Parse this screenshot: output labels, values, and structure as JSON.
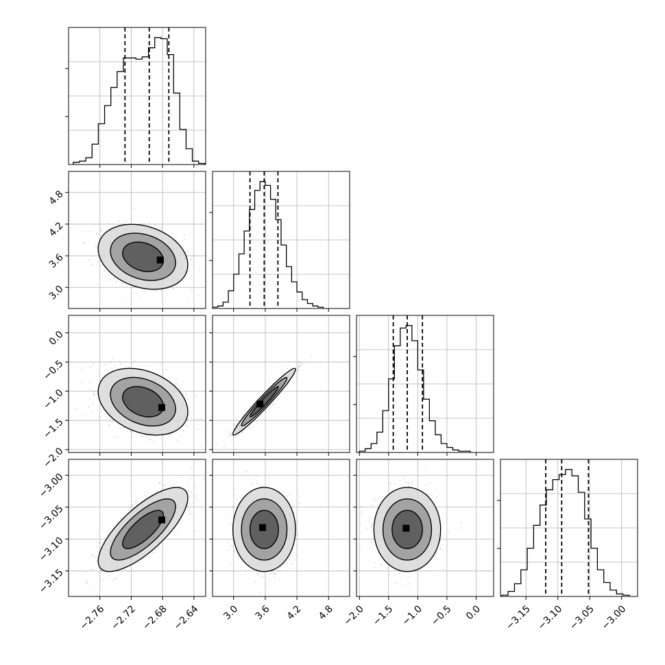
{
  "figure": {
    "grid": true
  },
  "chart_data": [
    {
      "type": "histogram",
      "panel": "1-1",
      "xlim": [
        -2.8,
        -2.625
      ],
      "bins": [
        {
          "x": -2.79,
          "count": 2
        },
        {
          "x": -2.782,
          "count": 3
        },
        {
          "x": -2.774,
          "count": 6
        },
        {
          "x": -2.766,
          "count": 18
        },
        {
          "x": -2.758,
          "count": 36
        },
        {
          "x": -2.75,
          "count": 52
        },
        {
          "x": -2.742,
          "count": 68
        },
        {
          "x": -2.734,
          "count": 82
        },
        {
          "x": -2.726,
          "count": 94
        },
        {
          "x": -2.718,
          "count": 94
        },
        {
          "x": -2.71,
          "count": 93
        },
        {
          "x": -2.702,
          "count": 95
        },
        {
          "x": -2.694,
          "count": 103
        },
        {
          "x": -2.686,
          "count": 112
        },
        {
          "x": -2.678,
          "count": 111
        },
        {
          "x": -2.67,
          "count": 97
        },
        {
          "x": -2.662,
          "count": 63
        },
        {
          "x": -2.654,
          "count": 31
        },
        {
          "x": -2.646,
          "count": 14
        },
        {
          "x": -2.638,
          "count": 3
        },
        {
          "x": -2.63,
          "count": 1
        }
      ],
      "quantiles": [
        -2.728,
        -2.697,
        -2.672
      ]
    },
    {
      "type": "histogram",
      "panel": "2-2",
      "xlim": [
        2.6,
        5.2
      ],
      "bins": [
        {
          "x": 2.65,
          "count": 1
        },
        {
          "x": 2.75,
          "count": 2
        },
        {
          "x": 2.85,
          "count": 5
        },
        {
          "x": 2.95,
          "count": 14
        },
        {
          "x": 3.05,
          "count": 27
        },
        {
          "x": 3.15,
          "count": 43
        },
        {
          "x": 3.25,
          "count": 61
        },
        {
          "x": 3.35,
          "count": 78
        },
        {
          "x": 3.45,
          "count": 93
        },
        {
          "x": 3.55,
          "count": 100
        },
        {
          "x": 3.65,
          "count": 97
        },
        {
          "x": 3.75,
          "count": 86
        },
        {
          "x": 3.85,
          "count": 70
        },
        {
          "x": 3.95,
          "count": 50
        },
        {
          "x": 4.05,
          "count": 33
        },
        {
          "x": 4.15,
          "count": 21
        },
        {
          "x": 4.25,
          "count": 13
        },
        {
          "x": 4.35,
          "count": 7
        },
        {
          "x": 4.45,
          "count": 4
        },
        {
          "x": 4.55,
          "count": 2
        },
        {
          "x": 4.65,
          "count": 1
        }
      ],
      "quantiles": [
        3.31,
        3.58,
        3.84
      ]
    },
    {
      "type": "histogram",
      "panel": "3-3",
      "xlim": [
        -2.05,
        0.3
      ],
      "bins": [
        {
          "x": -1.95,
          "count": 1
        },
        {
          "x": -1.85,
          "count": 3
        },
        {
          "x": -1.75,
          "count": 7
        },
        {
          "x": -1.65,
          "count": 16
        },
        {
          "x": -1.55,
          "count": 33
        },
        {
          "x": -1.45,
          "count": 58
        },
        {
          "x": -1.35,
          "count": 84
        },
        {
          "x": -1.25,
          "count": 98
        },
        {
          "x": -1.15,
          "count": 100
        },
        {
          "x": -1.05,
          "count": 88
        },
        {
          "x": -0.95,
          "count": 65
        },
        {
          "x": -0.85,
          "count": 42
        },
        {
          "x": -0.75,
          "count": 25
        },
        {
          "x": -0.65,
          "count": 14
        },
        {
          "x": -0.55,
          "count": 7
        },
        {
          "x": -0.45,
          "count": 4
        },
        {
          "x": -0.35,
          "count": 2
        },
        {
          "x": -0.25,
          "count": 1
        },
        {
          "x": -0.15,
          "count": 1
        }
      ],
      "quantiles": [
        -1.42,
        -1.18,
        -0.92
      ]
    },
    {
      "type": "histogram",
      "panel": "4-4",
      "xlim": [
        -3.19,
        -2.975
      ],
      "bins": [
        {
          "x": -3.183,
          "count": 1
        },
        {
          "x": -3.173,
          "count": 4
        },
        {
          "x": -3.163,
          "count": 10
        },
        {
          "x": -3.153,
          "count": 21
        },
        {
          "x": -3.143,
          "count": 38
        },
        {
          "x": -3.133,
          "count": 56
        },
        {
          "x": -3.123,
          "count": 72
        },
        {
          "x": -3.113,
          "count": 84
        },
        {
          "x": -3.103,
          "count": 92
        },
        {
          "x": -3.093,
          "count": 96
        },
        {
          "x": -3.083,
          "count": 100
        },
        {
          "x": -3.073,
          "count": 95
        },
        {
          "x": -3.063,
          "count": 82
        },
        {
          "x": -3.053,
          "count": 61
        },
        {
          "x": -3.043,
          "count": 38
        },
        {
          "x": -3.033,
          "count": 21
        },
        {
          "x": -3.023,
          "count": 11
        },
        {
          "x": -3.013,
          "count": 5
        },
        {
          "x": -3.003,
          "count": 2
        },
        {
          "x": -2.993,
          "count": 1
        }
      ],
      "quantiles": [
        -3.119,
        -3.094,
        -3.052
      ]
    },
    {
      "type": "scatter",
      "panel": "2-1",
      "xlim": [
        -2.8,
        -2.625
      ],
      "ylim": [
        2.6,
        5.2
      ],
      "center": [
        -2.705,
        3.58
      ],
      "spread": [
        0.026,
        0.28
      ],
      "correlation": -0.25,
      "contour_levels": [
        {
          "sigma": 1.0,
          "label": "inner"
        },
        {
          "sigma": 1.6,
          "label": "middle"
        },
        {
          "sigma": 2.2,
          "label": "outer"
        }
      ],
      "density_peak": [
        -2.683,
        3.52
      ]
    },
    {
      "type": "scatter",
      "panel": "3-1",
      "xlim": [
        -2.8,
        -2.625
      ],
      "ylim": [
        -2.05,
        0.3
      ],
      "center": [
        -2.705,
        -1.18
      ],
      "spread": [
        0.026,
        0.26
      ],
      "correlation": -0.3,
      "contour_levels": [
        {
          "sigma": 1.0,
          "label": "inner"
        },
        {
          "sigma": 1.6,
          "label": "middle"
        },
        {
          "sigma": 2.2,
          "label": "outer"
        }
      ],
      "density_peak": [
        -2.681,
        -1.28
      ]
    },
    {
      "type": "scatter",
      "panel": "3-2",
      "xlim": [
        2.6,
        5.2
      ],
      "ylim": [
        -2.05,
        0.3
      ],
      "center": [
        3.58,
        -1.18
      ],
      "spread": [
        0.27,
        0.26
      ],
      "correlation": 0.97,
      "contour_levels": [
        {
          "sigma": 1.0,
          "label": "inner"
        },
        {
          "sigma": 1.6,
          "label": "middle"
        },
        {
          "sigma": 2.2,
          "label": "outer"
        }
      ],
      "density_peak": [
        3.5,
        -1.22
      ]
    },
    {
      "type": "scatter",
      "panel": "4-1",
      "xlim": [
        -2.8,
        -2.625
      ],
      "ylim": [
        -3.19,
        -2.975
      ],
      "center": [
        -2.705,
        -3.085
      ],
      "spread": [
        0.026,
        0.03
      ],
      "correlation": 0.75,
      "contour_levels": [
        {
          "sigma": 1.0,
          "label": "inner"
        },
        {
          "sigma": 1.6,
          "label": "middle"
        },
        {
          "sigma": 2.2,
          "label": "outer"
        }
      ],
      "density_peak": [
        -2.681,
        -3.07
      ]
    },
    {
      "type": "scatter",
      "panel": "4-2",
      "xlim": [
        2.6,
        5.2
      ],
      "ylim": [
        -3.19,
        -2.975
      ],
      "center": [
        3.58,
        -3.085
      ],
      "spread": [
        0.27,
        0.03
      ],
      "correlation": 0.0,
      "contour_levels": [
        {
          "sigma": 1.0,
          "label": "inner"
        },
        {
          "sigma": 1.6,
          "label": "middle"
        },
        {
          "sigma": 2.2,
          "label": "outer"
        }
      ],
      "density_peak": [
        3.55,
        -3.082
      ]
    },
    {
      "type": "scatter",
      "panel": "4-3",
      "xlim": [
        -2.05,
        0.3
      ],
      "ylim": [
        -3.19,
        -2.975
      ],
      "center": [
        -1.18,
        -3.085
      ],
      "spread": [
        0.26,
        0.03
      ],
      "correlation": 0.0,
      "contour_levels": [
        {
          "sigma": 1.0,
          "label": "inner"
        },
        {
          "sigma": 1.6,
          "label": "middle"
        },
        {
          "sigma": 2.2,
          "label": "outer"
        }
      ],
      "density_peak": [
        -1.2,
        -3.083
      ]
    }
  ],
  "ticks": {
    "col1_x": [
      "−2.76",
      "−2.72",
      "−2.68",
      "−2.64"
    ],
    "col2_x": [
      "3.0",
      "3.6",
      "4.2",
      "4.8"
    ],
    "col3_x": [
      "−2.0",
      "−1.5",
      "−1.0",
      "−0.5",
      "0.0"
    ],
    "col4_x": [
      "−3.15",
      "−3.10",
      "−3.05",
      "−3.00"
    ],
    "row2_y": [
      "3.0",
      "3.6",
      "4.2",
      "4.8"
    ],
    "row3_y": [
      "−2.0",
      "−1.5",
      "−1.0",
      "−0.5",
      "0.0"
    ],
    "row4_y": [
      "−3.15",
      "−3.10",
      "−3.05",
      "−3.00"
    ]
  }
}
